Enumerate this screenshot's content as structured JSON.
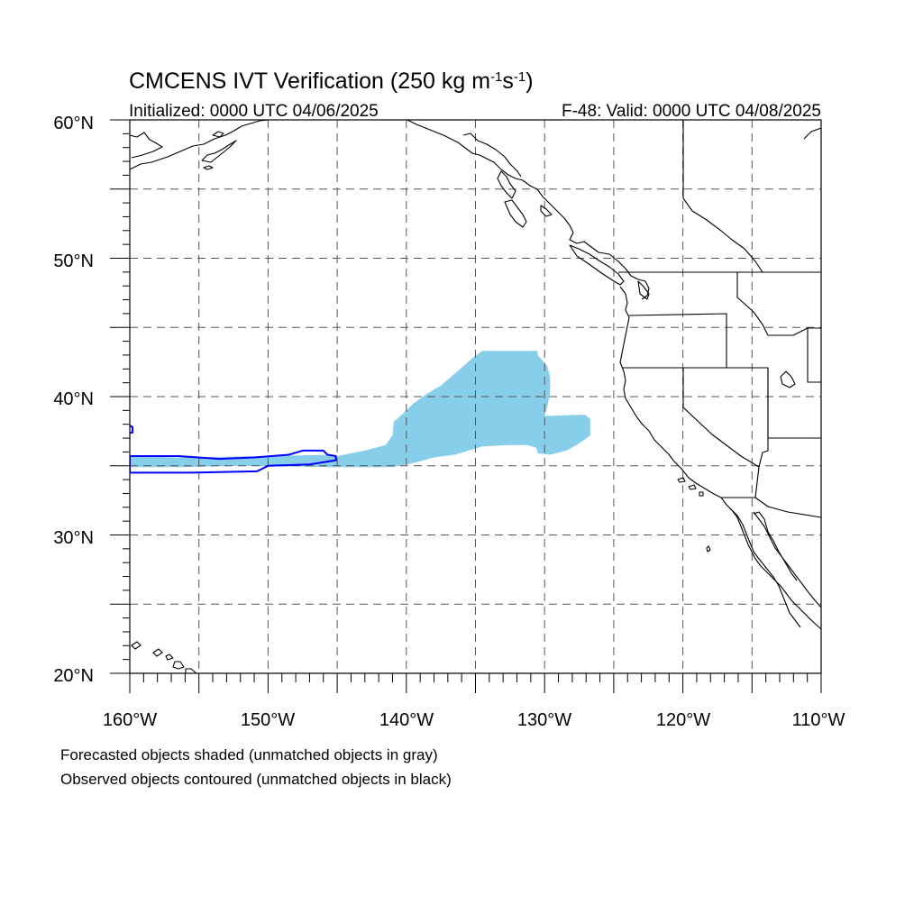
{
  "header": {
    "title_main": "CMCENS IVT Verification (250 kg m",
    "title_sup1": "-1",
    "title_s": "s",
    "title_sup2": "-1",
    "title_close": ")",
    "initialized": "Initialized: 0000 UTC 04/06/2025",
    "valid": "F-48: Valid: 0000 UTC 04/08/2025"
  },
  "map": {
    "lon_range": [
      -160,
      -110
    ],
    "lat_range": [
      20,
      60
    ],
    "projection": "cylindrical-equidistant",
    "grid": "dashed every 5 degrees",
    "lat_labels": [
      "60°N",
      "50°N",
      "40°N",
      "30°N",
      "20°N"
    ],
    "lon_labels": [
      "160°W",
      "150°W",
      "140°W",
      "130°W",
      "120°W",
      "110°W"
    ],
    "colors": {
      "forecast_fill": "#87CEEB",
      "observed_contour": "#0000FF",
      "coast": "#000000",
      "grid": "#555555"
    },
    "forecast_object": [
      [
        -134.5,
        43.3
      ],
      [
        -130.5,
        43.3
      ],
      [
        -130.5,
        43.0
      ],
      [
        -129.8,
        42.2
      ],
      [
        -129.6,
        41.4
      ],
      [
        -129.6,
        40.3
      ],
      [
        -129.8,
        39.3
      ],
      [
        -130.0,
        38.6
      ],
      [
        -127.1,
        38.7
      ],
      [
        -126.7,
        38.4
      ],
      [
        -126.7,
        37.2
      ],
      [
        -127.1,
        36.9
      ],
      [
        -127.7,
        36.5
      ],
      [
        -128.4,
        36.1
      ],
      [
        -129.6,
        35.8
      ],
      [
        -130.5,
        35.9
      ],
      [
        -130.6,
        36.3
      ],
      [
        -131.3,
        36.5
      ],
      [
        -132.5,
        36.5
      ],
      [
        -134.5,
        36.4
      ],
      [
        -136.5,
        35.8
      ],
      [
        -138.0,
        35.6
      ],
      [
        -139.5,
        35.2
      ],
      [
        -141.0,
        34.9
      ],
      [
        -145.0,
        34.9
      ],
      [
        -152.0,
        35.0
      ],
      [
        -156.0,
        34.9
      ],
      [
        -160.0,
        34.9
      ],
      [
        -160.0,
        35.7
      ],
      [
        -156.5,
        35.6
      ],
      [
        -150.0,
        35.7
      ],
      [
        -145.5,
        35.8
      ],
      [
        -145.0,
        35.7
      ],
      [
        -143.0,
        36.1
      ],
      [
        -141.5,
        36.5
      ],
      [
        -141.0,
        37.2
      ],
      [
        -140.9,
        38.2
      ],
      [
        -140.2,
        38.8
      ],
      [
        -139.5,
        39.5
      ],
      [
        -138.5,
        40.2
      ],
      [
        -137.5,
        40.8
      ],
      [
        -136.8,
        41.4
      ],
      [
        -136.1,
        42.0
      ],
      [
        -135.2,
        42.8
      ]
    ],
    "observed_object": [
      [
        -160.0,
        35.7
      ],
      [
        -156.5,
        35.7
      ],
      [
        -153.5,
        35.5
      ],
      [
        -151.0,
        35.6
      ],
      [
        -148.5,
        35.8
      ],
      [
        -147.5,
        36.1
      ],
      [
        -146.0,
        36.1
      ],
      [
        -145.7,
        35.8
      ],
      [
        -145.1,
        35.7
      ],
      [
        -145.1,
        35.4
      ],
      [
        -147.0,
        35.1
      ],
      [
        -150.0,
        35.0
      ],
      [
        -150.8,
        34.6
      ],
      [
        -155.5,
        34.5
      ],
      [
        -160.0,
        34.5
      ],
      [
        -160.0,
        35.7
      ]
    ],
    "observed_fragment": [
      [
        -160.0,
        37.9
      ],
      [
        -159.8,
        37.8
      ],
      [
        -159.8,
        37.4
      ],
      [
        -160.0,
        37.4
      ]
    ]
  },
  "footer": {
    "line1": "Forecasted objects shaded (unmatched objects in gray)",
    "line2": "Observed objects contoured (unmatched objects in black)"
  }
}
